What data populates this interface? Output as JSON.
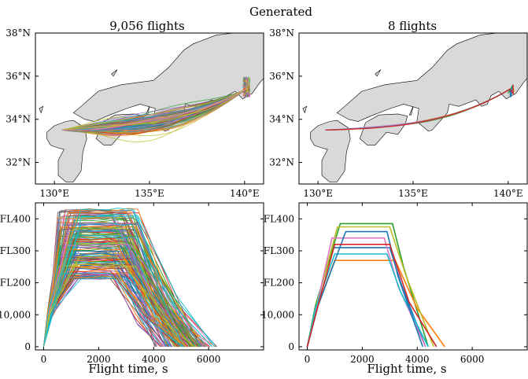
{
  "figure": {
    "title": "Generated",
    "panels": [
      {
        "id": "left",
        "title": "9,056 flights"
      },
      {
        "id": "right",
        "title": "8 flights"
      }
    ]
  },
  "chart_data": [
    {
      "type": "line",
      "panel": "top-left",
      "title": "9,056 flights",
      "xlabel": "",
      "ylabel": "",
      "xlim": [
        129,
        141
      ],
      "ylim": [
        31,
        38
      ],
      "xticks": [
        130,
        135,
        140
      ],
      "xtick_labels": [
        "130°E",
        "135°E",
        "140°E"
      ],
      "yticks": [
        32,
        34,
        36,
        38
      ],
      "ytick_labels": [
        "32°N",
        "34°N",
        "36°N",
        "38°N"
      ],
      "flight_count": 9056,
      "route": {
        "start": [
          130.4,
          33.55
        ],
        "end": [
          140.3,
          35.6
        ]
      },
      "mean_track_lat_at_lon": {
        "130.4": 33.5,
        "132": 33.7,
        "134": 34.1,
        "136": 34.4,
        "138": 34.7,
        "139.5": 35.0,
        "140.3": 35.6
      }
    },
    {
      "type": "line",
      "panel": "top-right",
      "title": "8 flights",
      "xlabel": "",
      "ylabel": "",
      "xlim": [
        129,
        141
      ],
      "ylim": [
        31,
        38
      ],
      "xticks": [
        130,
        135,
        140
      ],
      "xtick_labels": [
        "130°E",
        "135°E",
        "140°E"
      ],
      "yticks": [
        32,
        34,
        36,
        38
      ],
      "ytick_labels": [
        "32°N",
        "34°N",
        "36°N",
        "38°N"
      ],
      "flight_count": 8,
      "route": {
        "start": [
          130.4,
          33.55
        ],
        "end": [
          140.3,
          35.6
        ]
      }
    },
    {
      "type": "line",
      "panel": "bottom-left",
      "xlabel": "Flight time, s",
      "ylabel": "",
      "xlim": [
        -300,
        8000
      ],
      "ylim": [
        -1000,
        45000
      ],
      "xticks": [
        0,
        2000,
        4000,
        6000
      ],
      "xtick_labels": [
        "0",
        "2000",
        "4000",
        "6000"
      ],
      "yticks": [
        0,
        10000,
        20000,
        30000,
        40000
      ],
      "ytick_labels": [
        "0",
        "10,000",
        "FL200",
        "FL300",
        "FL400"
      ],
      "cruise_altitude_range": [
        20000,
        43000
      ],
      "descent_end_range": [
        5300,
        6700
      ]
    },
    {
      "type": "line",
      "panel": "bottom-right",
      "xlabel": "Flight time, s",
      "ylabel": "",
      "xlim": [
        -300,
        8000
      ],
      "ylim": [
        -1000,
        45000
      ],
      "xticks": [
        0,
        2000,
        4000,
        6000
      ],
      "xtick_labels": [
        "0",
        "2000",
        "4000",
        "6000"
      ],
      "yticks": [
        0,
        10000,
        20000,
        30000,
        40000
      ],
      "ytick_labels": [
        "0",
        "10,000",
        "FL200",
        "FL300",
        "FL400"
      ],
      "series": [
        {
          "color": "#1f77b4",
          "x": [
            0,
            300,
            900,
            3000,
            3400,
            4300
          ],
          "y": [
            0,
            12000,
            31000,
            31000,
            20000,
            0
          ]
        },
        {
          "color": "#2ca02c",
          "x": [
            0,
            300,
            1200,
            3100,
            3500,
            4400
          ],
          "y": [
            0,
            13000,
            38500,
            38500,
            25000,
            0
          ]
        },
        {
          "color": "#ff7f0e",
          "x": [
            0,
            300,
            1000,
            3200,
            4000,
            5000
          ],
          "y": [
            0,
            11000,
            27000,
            27000,
            12000,
            0
          ]
        },
        {
          "color": "#bcbd22",
          "x": [
            0,
            300,
            1100,
            3000,
            3600,
            4600
          ],
          "y": [
            0,
            12000,
            37500,
            37500,
            22000,
            0
          ]
        },
        {
          "color": "#e377c2",
          "x": [
            0,
            300,
            900,
            2800,
            3300,
            4300
          ],
          "y": [
            0,
            11000,
            34000,
            34000,
            19000,
            0
          ]
        },
        {
          "color": "#17becf",
          "x": [
            0,
            300,
            1000,
            2900,
            3400,
            4400
          ],
          "y": [
            0,
            12000,
            29000,
            29000,
            17000,
            0
          ]
        },
        {
          "color": "#1f77b4",
          "x": [
            0,
            400,
            1400,
            2900,
            3300,
            4200
          ],
          "y": [
            0,
            13000,
            36000,
            36000,
            22000,
            0
          ]
        },
        {
          "color": "#d62728",
          "x": [
            0,
            300,
            1000,
            3000,
            3700,
            4700
          ],
          "y": [
            0,
            10000,
            32000,
            32000,
            14000,
            0
          ]
        }
      ]
    }
  ],
  "palette": [
    "#1f77b4",
    "#ff7f0e",
    "#2ca02c",
    "#d62728",
    "#9467bd",
    "#8c564b",
    "#e377c2",
    "#7f7f7f",
    "#bcbd22",
    "#17becf"
  ],
  "land_color": "#d9d9d9"
}
